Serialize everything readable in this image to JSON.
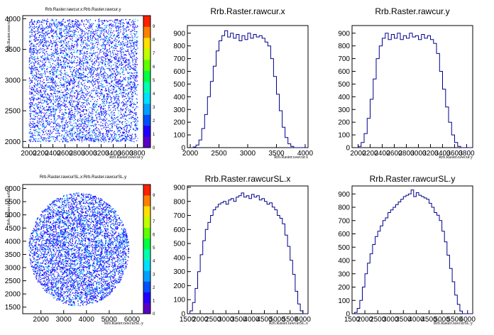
{
  "colors": {
    "hist_line": "#00008b",
    "palette": [
      "#5a00c8",
      "#2200ff",
      "#0050ff",
      "#00a0ff",
      "#00e0ff",
      "#00ffb0",
      "#00ff40",
      "#60ff00",
      "#c0ff00",
      "#ffe000",
      "#ff8000",
      "#ff2000"
    ]
  },
  "chart_data": [
    {
      "type": "heatmap",
      "title": "Rrb.Raster.rawcur.x:Rrb.Raster.rawcur.y",
      "xlabel": "Rrb.Raster.rawcur.y",
      "ylabel": "Rrb.Raster.rawcur.x",
      "x_ticks": [
        "2000",
        "2200",
        "2400",
        "2600",
        "2800",
        "3000",
        "3200",
        "3400",
        "3600",
        "3800"
      ],
      "y_ticks": [
        "2000",
        "2500",
        "3000",
        "3500",
        "4000"
      ],
      "xlim": [
        1900,
        3900
      ],
      "ylim": [
        1900,
        4050
      ],
      "shape": "square",
      "x_range": [
        2000,
        3800
      ],
      "y_range": [
        2000,
        4000
      ],
      "z_ticks": [
        "0",
        "1",
        "2",
        "3",
        "4",
        "5",
        "6",
        "7",
        "8",
        "9"
      ],
      "grid": false
    },
    {
      "type": "line",
      "title": "Rrb.Raster.rawcur.x",
      "xlabel": "Rrb.Raster.rawcur.x",
      "x_ticks": [
        "2000",
        "2500",
        "3000",
        "3500",
        "4000"
      ],
      "y_ticks": [
        "0",
        "100",
        "200",
        "300",
        "400",
        "500",
        "600",
        "700",
        "800",
        "900"
      ],
      "xlim": [
        1950,
        4050
      ],
      "ylim": [
        0,
        960
      ],
      "x": [
        1950,
        2000,
        2050,
        2100,
        2150,
        2200,
        2250,
        2300,
        2350,
        2400,
        2450,
        2500,
        2550,
        2600,
        2650,
        2700,
        2750,
        2800,
        2850,
        2900,
        2950,
        3000,
        3050,
        3100,
        3150,
        3200,
        3250,
        3300,
        3350,
        3400,
        3450,
        3500,
        3550,
        3600,
        3650,
        3700,
        3750,
        3800,
        3850,
        3900,
        3950,
        4000
      ],
      "values": [
        0,
        0,
        5,
        20,
        60,
        150,
        260,
        400,
        520,
        640,
        760,
        840,
        880,
        920,
        870,
        900,
        860,
        890,
        840,
        880,
        850,
        900,
        860,
        890,
        870,
        880,
        860,
        830,
        800,
        700,
        560,
        420,
        290,
        160,
        80,
        30,
        10,
        0,
        0,
        0,
        0,
        0
      ],
      "grid": false
    },
    {
      "type": "line",
      "title": "Rrb.Raster.rawcur.y",
      "xlabel": "Rrb.Raster.rawcur.y",
      "x_ticks": [
        "2000",
        "2200",
        "2400",
        "2600",
        "2800",
        "3000",
        "3200",
        "3400",
        "3600",
        "3800"
      ],
      "y_ticks": [
        "0",
        "100",
        "200",
        "300",
        "400",
        "500",
        "600",
        "700",
        "800",
        "900"
      ],
      "xlim": [
        1900,
        3900
      ],
      "ylim": [
        0,
        960
      ],
      "x": [
        1900,
        1950,
        2000,
        2050,
        2100,
        2150,
        2200,
        2250,
        2300,
        2350,
        2400,
        2450,
        2500,
        2550,
        2600,
        2650,
        2700,
        2750,
        2800,
        2850,
        2900,
        2950,
        3000,
        3050,
        3100,
        3150,
        3200,
        3250,
        3300,
        3350,
        3400,
        3450,
        3500,
        3550,
        3600,
        3650,
        3700,
        3750,
        3800,
        3850
      ],
      "values": [
        0,
        0,
        10,
        40,
        110,
        230,
        380,
        540,
        700,
        800,
        860,
        900,
        850,
        890,
        860,
        900,
        850,
        880,
        860,
        900,
        870,
        880,
        850,
        890,
        860,
        880,
        850,
        820,
        740,
        600,
        460,
        320,
        200,
        100,
        40,
        10,
        0,
        0,
        0,
        0
      ],
      "grid": false
    },
    {
      "type": "heatmap",
      "title": "Rrb.Raster.rawcurSL.x:Rrb.Raster.rawcurSL.y",
      "xlabel": "Rrb.Raster.rawcurSL.y",
      "ylabel": "Rrb.Raster.rawcurSL.x",
      "x_ticks": [
        "2000",
        "3000",
        "4000",
        "5000",
        "6000"
      ],
      "y_ticks": [
        "1500",
        "2000",
        "2500",
        "3000",
        "3500",
        "4000",
        "4500",
        "5000",
        "5500",
        "6000"
      ],
      "xlim": [
        1200,
        6500
      ],
      "ylim": [
        1250,
        6150
      ],
      "shape": "disk",
      "center": [
        3650,
        3700
      ],
      "radius": [
        2200,
        2150
      ],
      "z_ticks": [
        "0",
        "1",
        "2",
        "3",
        "4",
        "5",
        "6",
        "7",
        "8",
        "9"
      ],
      "grid": false
    },
    {
      "type": "line",
      "title": "Rrb.Raster.rawcurSL.x",
      "xlabel": "Rrb.Raster.rawcurSL.x",
      "x_ticks": [
        "1500",
        "2000",
        "2500",
        "3000",
        "3500",
        "4000",
        "4500",
        "5000",
        "5500",
        "6000"
      ],
      "y_ticks": [
        "0",
        "100",
        "200",
        "300",
        "400",
        "500",
        "600",
        "700",
        "800",
        "900"
      ],
      "xlim": [
        1500,
        6200
      ],
      "ylim": [
        0,
        910
      ],
      "x": [
        1500,
        1600,
        1700,
        1800,
        1900,
        2000,
        2100,
        2200,
        2300,
        2400,
        2500,
        2600,
        2700,
        2800,
        2900,
        3000,
        3100,
        3200,
        3300,
        3400,
        3500,
        3600,
        3700,
        3800,
        3900,
        4000,
        4100,
        4200,
        4300,
        4400,
        4500,
        4600,
        4700,
        4800,
        4900,
        5000,
        5100,
        5200,
        5300,
        5400,
        5500,
        5600,
        5700,
        5800,
        5900,
        6000,
        6100
      ],
      "values": [
        0,
        20,
        80,
        180,
        300,
        420,
        520,
        600,
        650,
        700,
        740,
        760,
        780,
        790,
        800,
        780,
        810,
        820,
        800,
        830,
        840,
        860,
        830,
        840,
        820,
        850,
        830,
        840,
        810,
        820,
        800,
        780,
        790,
        760,
        740,
        700,
        680,
        640,
        560,
        480,
        380,
        280,
        160,
        70,
        20,
        0,
        0
      ],
      "grid": false
    },
    {
      "type": "line",
      "title": "Rrb.Raster.rawcurSL.y",
      "xlabel": "Rrb.Raster.rawcurSL.y",
      "x_ticks": [
        "1500",
        "2000",
        "2500",
        "3000",
        "3500",
        "4000",
        "4500",
        "5000",
        "5500",
        "6000"
      ],
      "y_ticks": [
        "0",
        "100",
        "200",
        "300",
        "400",
        "500",
        "600",
        "700",
        "800",
        "900"
      ],
      "xlim": [
        1500,
        6200
      ],
      "ylim": [
        0,
        960
      ],
      "x": [
        1500,
        1600,
        1700,
        1800,
        1900,
        2000,
        2100,
        2200,
        2300,
        2400,
        2500,
        2600,
        2700,
        2800,
        2900,
        3000,
        3100,
        3200,
        3300,
        3400,
        3500,
        3600,
        3700,
        3800,
        3900,
        4000,
        4100,
        4200,
        4300,
        4400,
        4500,
        4600,
        4700,
        4800,
        4900,
        5000,
        5100,
        5200,
        5300,
        5400,
        5500,
        5600,
        5700,
        5800,
        5900,
        6000,
        6100
      ],
      "values": [
        0,
        10,
        40,
        100,
        200,
        300,
        380,
        450,
        520,
        580,
        620,
        660,
        700,
        720,
        760,
        780,
        800,
        820,
        840,
        860,
        880,
        890,
        900,
        930,
        880,
        910,
        890,
        880,
        870,
        860,
        830,
        800,
        760,
        740,
        700,
        620,
        540,
        440,
        340,
        240,
        140,
        70,
        20,
        0,
        0,
        0,
        0
      ],
      "grid": false
    }
  ]
}
